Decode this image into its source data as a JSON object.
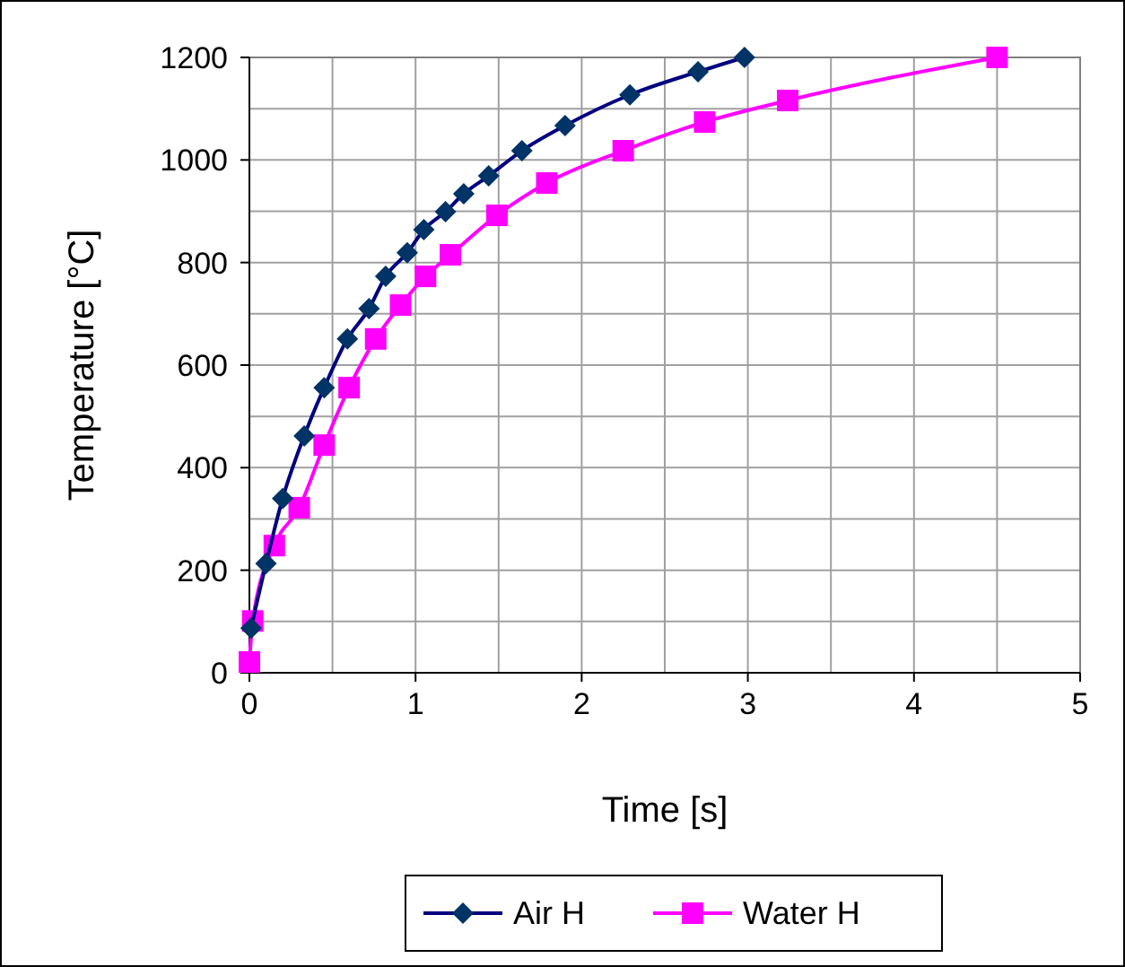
{
  "chart_data": {
    "type": "line",
    "xlabel": "Time [s]",
    "ylabel": "Temperature [°C]",
    "xlim": [
      0,
      5
    ],
    "xticks": [
      0,
      {
        "value": 0.5,
        "label": null
      },
      1,
      {
        "value": 1.5,
        "label": null
      },
      2,
      {
        "value": 2.5,
        "label": null
      },
      3,
      {
        "value": 3.5,
        "label": null
      },
      4,
      {
        "value": 4.5,
        "label": null
      },
      5
    ],
    "ylim": [
      0,
      1200
    ],
    "yticks": [
      0,
      {
        "value": 100,
        "label": null
      },
      200,
      {
        "value": 300,
        "label": null
      },
      400,
      {
        "value": 500,
        "label": null
      },
      600,
      {
        "value": 700,
        "label": null
      },
      800,
      {
        "value": 900,
        "label": null
      },
      1000,
      {
        "value": 1100,
        "label": null
      },
      1200
    ],
    "grid": true,
    "legend": "bottom",
    "series": [
      {
        "name": "Air H",
        "color": "#000080",
        "marker": "diamond",
        "x": [
          0.01,
          0.1,
          0.2,
          0.33,
          0.45,
          0.59,
          0.72,
          0.82,
          0.95,
          1.05,
          1.18,
          1.29,
          1.44,
          1.64,
          1.9,
          2.29,
          2.7,
          2.98
        ],
        "values": [
          87,
          213,
          340,
          462,
          556,
          651,
          710,
          773,
          819,
          864,
          899,
          934,
          969,
          1018,
          1067,
          1127,
          1172,
          1200
        ]
      },
      {
        "name": "Water H",
        "color": "#ff00ff",
        "marker": "square",
        "x": [
          0,
          0.02,
          0.15,
          0.3,
          0.45,
          0.6,
          0.76,
          0.91,
          1.06,
          1.21,
          1.49,
          1.79,
          2.25,
          2.74,
          3.24,
          4.5
        ],
        "values": [
          21,
          101,
          248,
          322,
          444,
          556,
          651,
          717,
          773,
          815,
          892,
          955,
          1018,
          1074,
          1116,
          1200
        ]
      }
    ]
  }
}
